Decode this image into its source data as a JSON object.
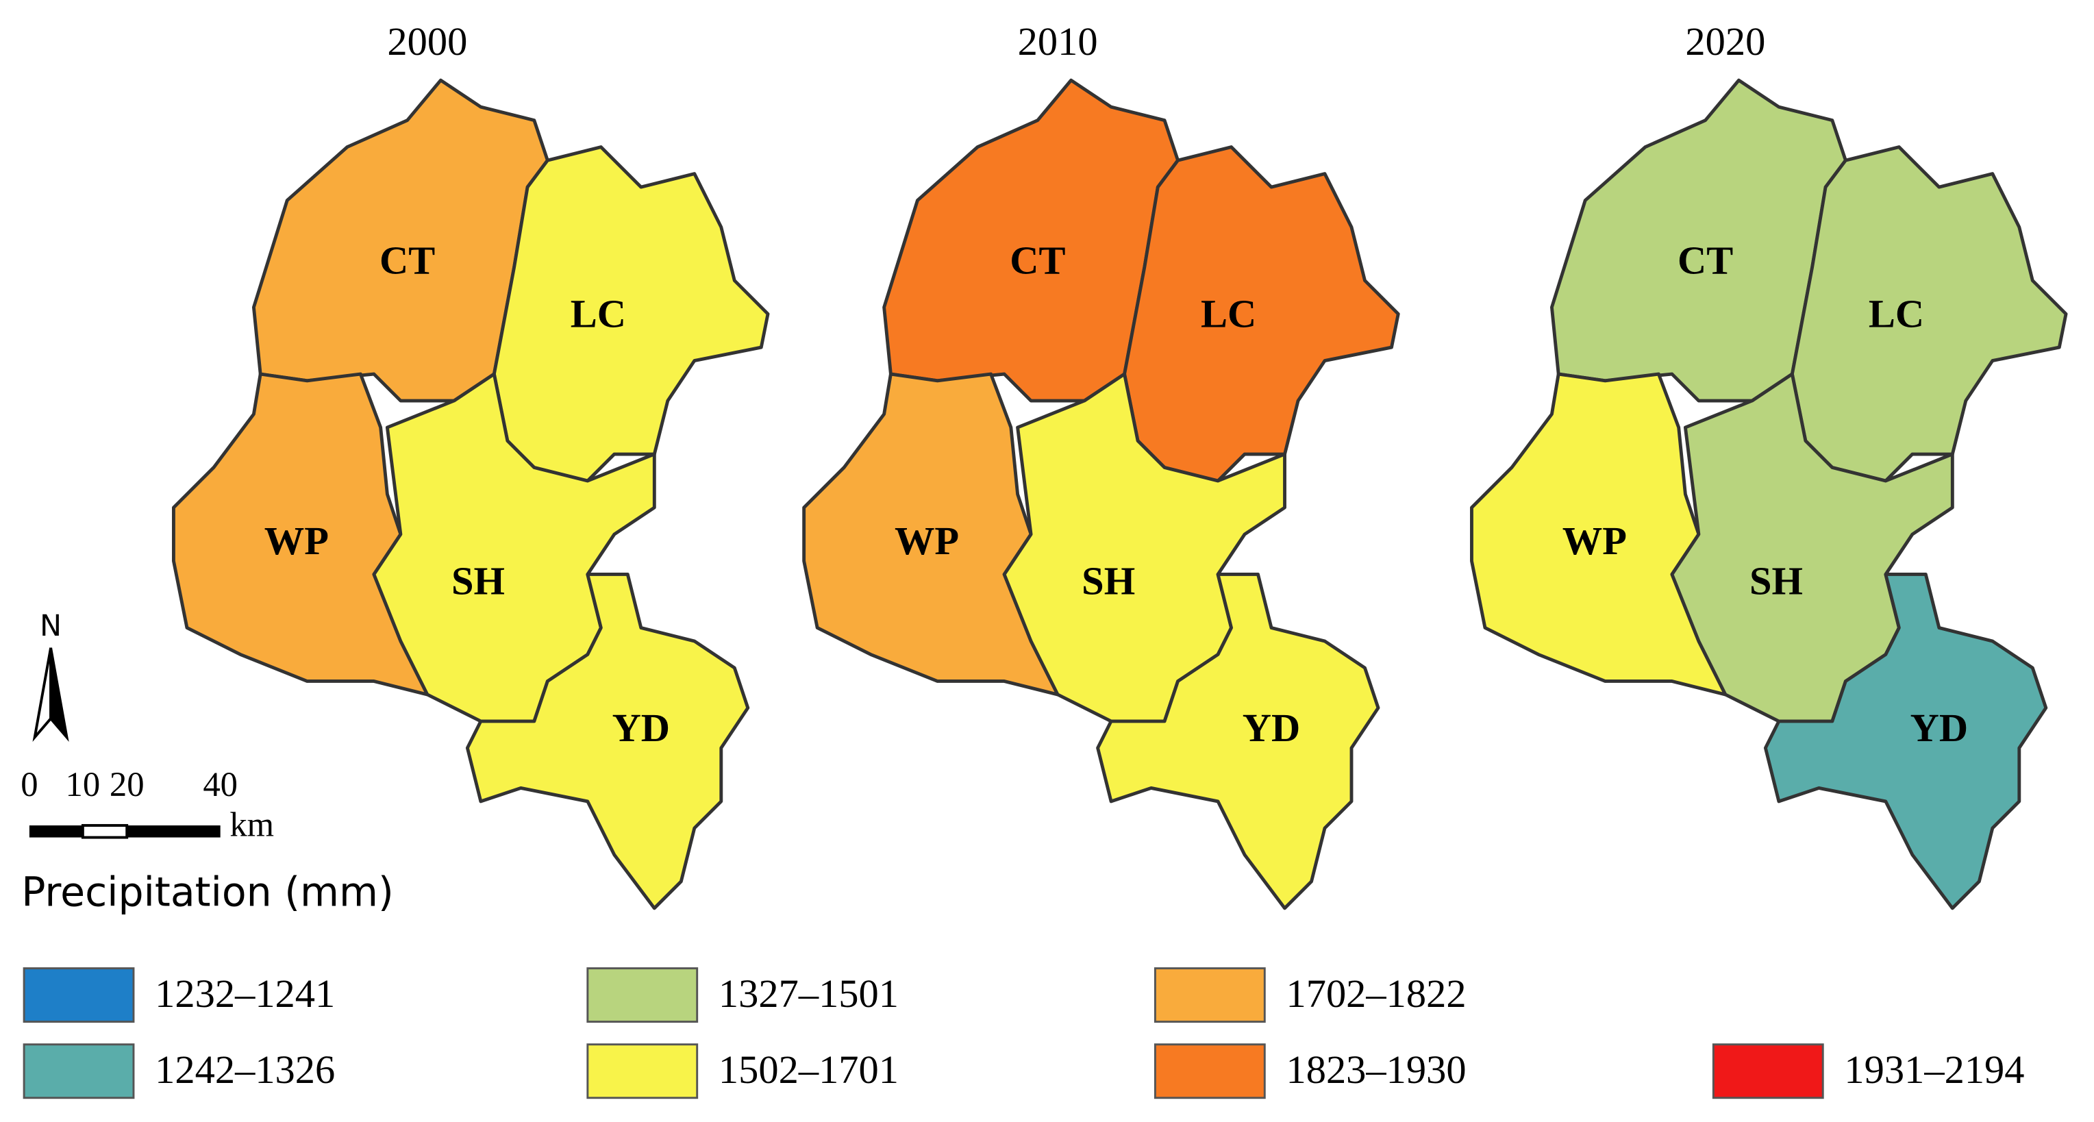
{
  "maps": [
    {
      "title": "2000"
    },
    {
      "title": "2010"
    },
    {
      "title": "2020"
    }
  ],
  "regions": [
    "CT",
    "LC",
    "WP",
    "SH",
    "YD"
  ],
  "north_arrow": "N",
  "scale_bar": {
    "ticks": [
      "0",
      "10",
      "20",
      "40"
    ],
    "unit": "km"
  },
  "legend": {
    "title": "Precipitation (mm)",
    "items": [
      {
        "label": "1232–1241",
        "color": "#1e7fc8"
      },
      {
        "label": "1242–1326",
        "color": "#5aadaa"
      },
      {
        "label": "1327–1501",
        "color": "#b8d47e"
      },
      {
        "label": "1502–1701",
        "color": "#f8f34a"
      },
      {
        "label": "1702–1822",
        "color": "#f9ab3c"
      },
      {
        "label": "1823–1930",
        "color": "#f77a22"
      },
      {
        "label": "1931–2194",
        "color": "#f01818"
      }
    ]
  }
}
